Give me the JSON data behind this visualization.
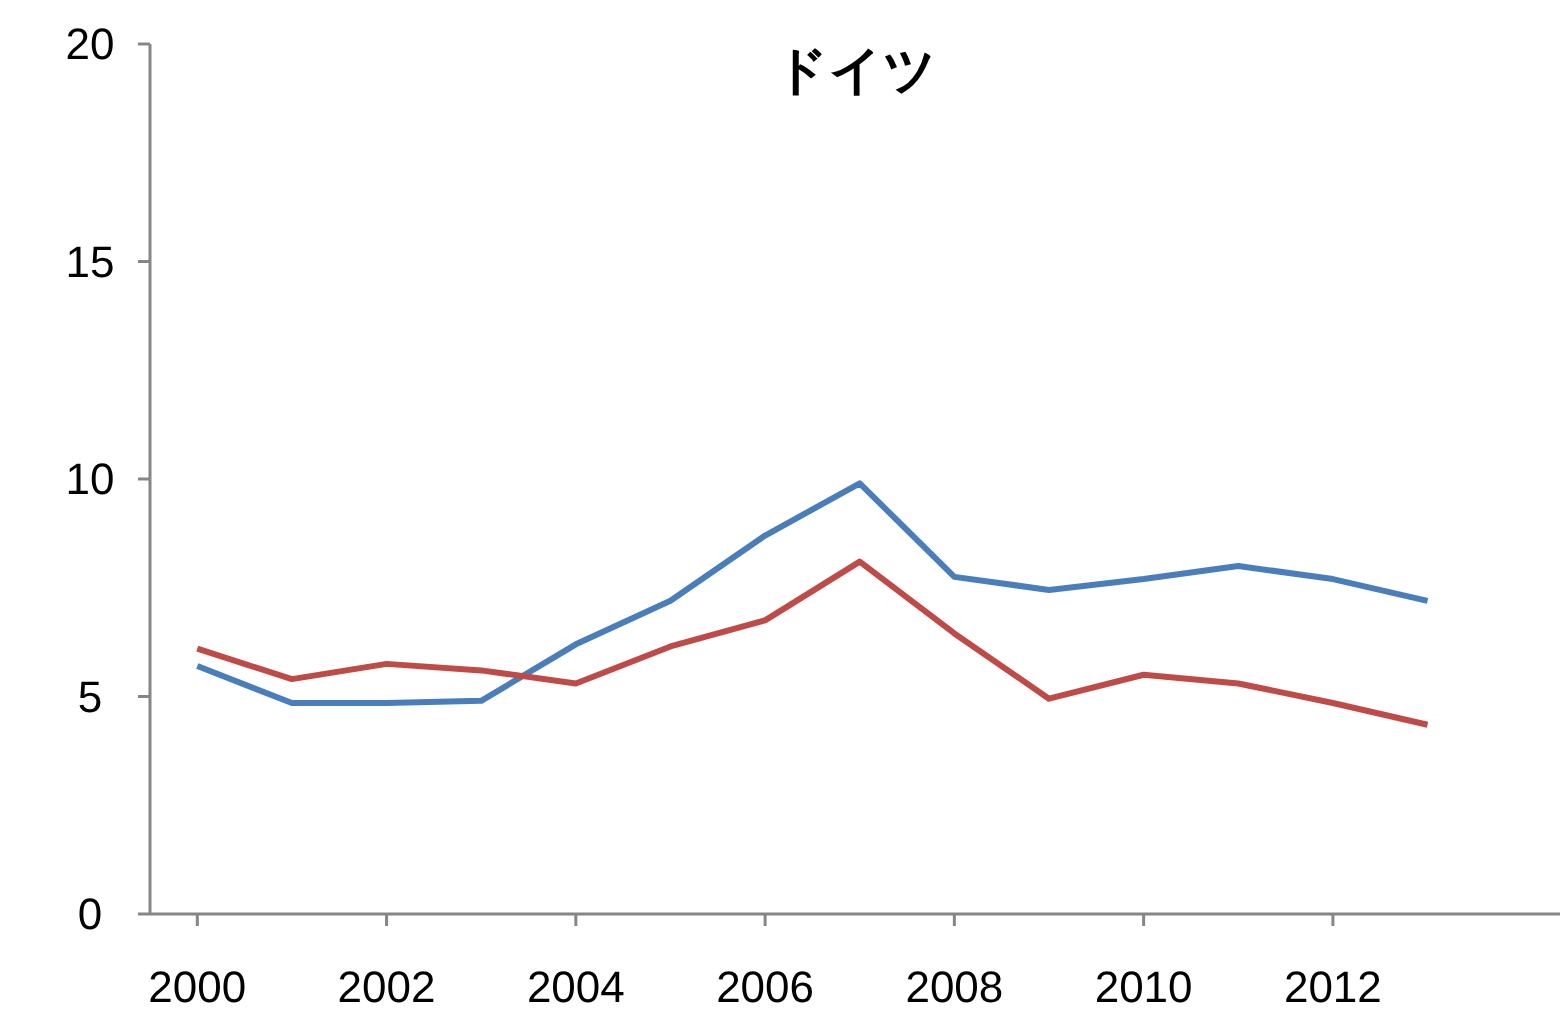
{
  "chart_data": {
    "type": "line",
    "title": "ドイツ",
    "x": [
      2000,
      2001,
      2002,
      2003,
      2004,
      2005,
      2006,
      2007,
      2008,
      2009,
      2010,
      2011,
      2012,
      2013
    ],
    "series": [
      {
        "color": "#4a7ebb",
        "values": [
          5.7,
          4.85,
          4.85,
          4.9,
          6.2,
          7.2,
          8.7,
          9.9,
          7.75,
          7.45,
          7.7,
          8.0,
          7.7,
          7.2
        ]
      },
      {
        "color": "#be4b48",
        "values": [
          6.1,
          5.4,
          5.75,
          5.6,
          5.3,
          6.15,
          6.75,
          8.1,
          6.45,
          4.95,
          5.5,
          5.3,
          4.85,
          4.35
        ]
      }
    ],
    "xlim": [
      1999.5,
      2014.4
    ],
    "xticks": [
      2000,
      2002,
      2004,
      2006,
      2008,
      2010,
      2012
    ],
    "ylim": [
      0,
      20
    ],
    "yticks": [
      0,
      5,
      10,
      15,
      20
    ],
    "grid": false,
    "marker": "none",
    "line_style": "solid"
  }
}
